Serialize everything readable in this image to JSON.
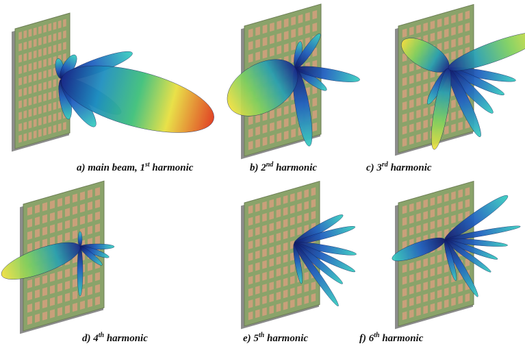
{
  "panels": [
    {
      "caption": {
        "label": "a) main beam, 1",
        "sup": "st",
        "suffix": " harmonic"
      }
    },
    {
      "caption": {
        "label": "b) 2",
        "sup": "nd",
        "suffix": " harmonic"
      }
    },
    {
      "caption": {
        "label": "c) 3",
        "sup": "rd",
        "suffix": " harmonic"
      }
    },
    {
      "caption": {
        "label": "d) 4",
        "sup": "th",
        "suffix": " harmonic"
      }
    },
    {
      "caption": {
        "label": "e) 5",
        "sup": "th",
        "suffix": " harmonic"
      }
    },
    {
      "caption": {
        "label": "f) 6",
        "sup": "th",
        "suffix": " harmonic"
      }
    }
  ]
}
